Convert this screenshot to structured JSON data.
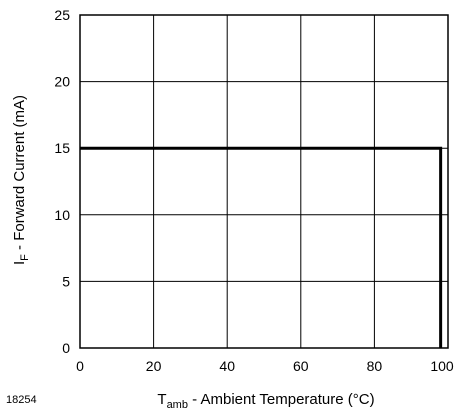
{
  "figure_id": "18254",
  "chart_data": {
    "type": "line",
    "title": "",
    "xlabel": {
      "main": "T",
      "sub": "amb",
      "rest": " - Ambient Temperature (°C)"
    },
    "ylabel": {
      "main": "I",
      "sub": "F",
      "rest": " - Forward Current (mA)"
    },
    "xlim": [
      0,
      100
    ],
    "ylim": [
      0,
      25
    ],
    "xticks": [
      0,
      20,
      40,
      60,
      80,
      100
    ],
    "yticks": [
      0,
      5,
      10,
      15,
      20,
      25
    ],
    "xtick_labels": [
      "0",
      "20",
      "40",
      "60",
      "80",
      "100"
    ],
    "ytick_labels": [
      "0",
      "5",
      "10",
      "15",
      "20",
      "25"
    ],
    "grid": true,
    "series": [
      {
        "x": [
          0,
          98,
          98
        ],
        "y": [
          15,
          15,
          0
        ],
        "color": "#000000"
      }
    ]
  }
}
